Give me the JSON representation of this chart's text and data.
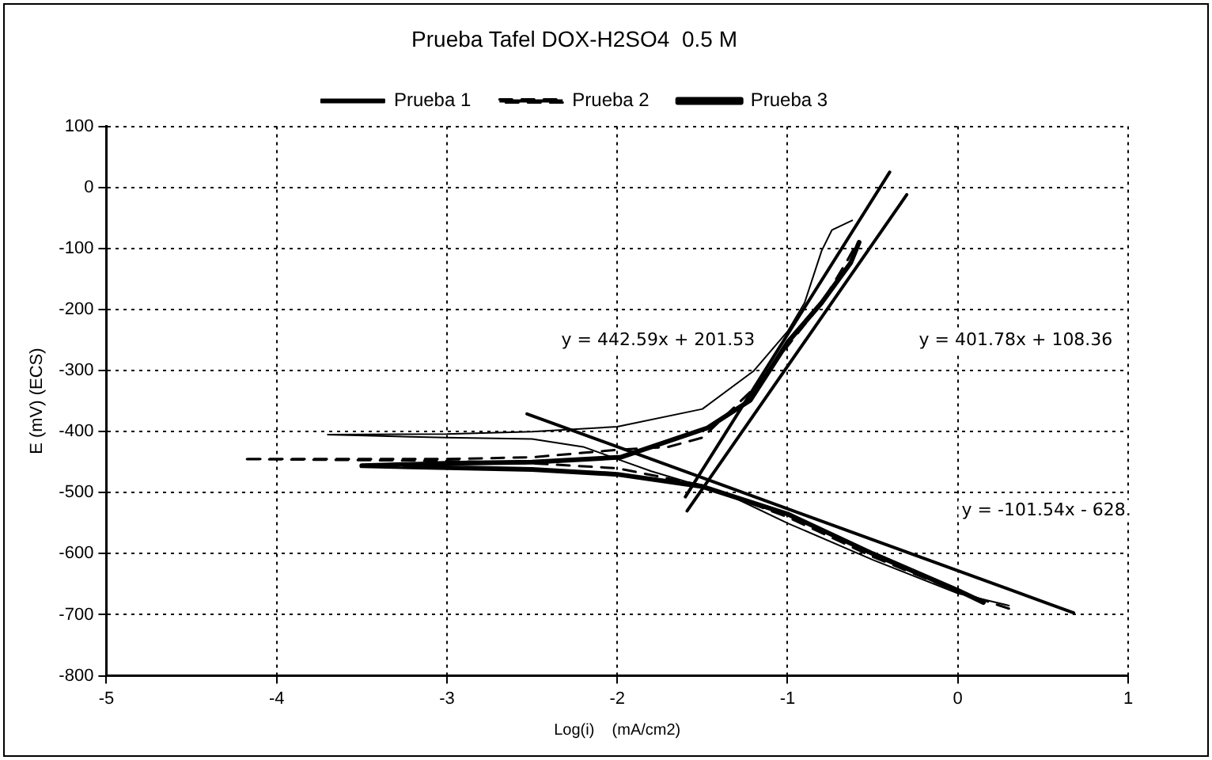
{
  "chart_data": {
    "type": "line",
    "title": "Prueba Tafel DOX-H2SO4  0.5 M",
    "xlabel": "Log(i)    (mA/cm2)",
    "ylabel": "E (mV) (ECS)",
    "xlim": [
      -5,
      1
    ],
    "xticks": [
      -5,
      -4,
      -3,
      -2,
      -1,
      0,
      1
    ],
    "ylim": [
      -800,
      100
    ],
    "yticks": [
      -800,
      -700,
      -600,
      -500,
      -400,
      -300,
      -200,
      -100,
      0,
      100
    ],
    "grid": true,
    "legend": "top",
    "marker": "none",
    "series": [
      {
        "name": "Prueba 1",
        "color": "#000000",
        "line_style": "solid",
        "x": [
          0.3,
          0,
          -0.5,
          -1,
          -1.3,
          -1.5,
          -1.8,
          -2,
          -2.2,
          -2.5,
          -3,
          -3.7,
          -3,
          -2.5,
          -2,
          -1.5,
          -1.2,
          -1,
          -0.9,
          -0.8,
          -0.74,
          -0.62
        ],
        "values": [
          -685,
          -665,
          -610,
          -550,
          -510,
          -490,
          -465,
          -445,
          -425,
          -412,
          -410,
          -405,
          -404,
          -400,
          -392,
          -363,
          -301,
          -236,
          -189,
          -104,
          -70,
          -54
        ]
      },
      {
        "name": "Prueba 2",
        "color": "#000000",
        "line_style": "dashed",
        "x": [
          0.3,
          0,
          -0.5,
          -1,
          -1.5,
          -2,
          -2.5,
          -3,
          -4.2,
          -3,
          -2.5,
          -2,
          -1.7,
          -1.5,
          -1.35,
          -1.2,
          -1,
          -0.8,
          -0.65,
          -0.6
        ],
        "values": [
          -690,
          -662,
          -605,
          -540,
          -488,
          -460,
          -452,
          -448,
          -445,
          -445,
          -442,
          -430,
          -425,
          -410,
          -370,
          -330,
          -260,
          -190,
          -120,
          -95
        ]
      },
      {
        "name": "Prueba 3",
        "color": "#000000",
        "line_style": "solid",
        "x": [
          0.15,
          0,
          -0.5,
          -1,
          -1.5,
          -2,
          -2.5,
          -3.5,
          -3,
          -2.5,
          -1.98,
          -1.47,
          -1.22,
          -1,
          -0.8,
          -0.63,
          -0.58
        ],
        "values": [
          -680,
          -660,
          -600,
          -535,
          -490,
          -470,
          -462,
          -456,
          -452,
          -450,
          -442,
          -394,
          -349,
          -254,
          -189,
          -124,
          -90
        ]
      },
      {
        "color": "#000000",
        "line_style": "solid",
        "x": [
          -1.6,
          -0.4
        ],
        "values": [
          -507,
          25
        ]
      },
      {
        "color": "#000000",
        "line_style": "solid",
        "x": [
          -1.59,
          -0.3
        ],
        "values": [
          -530,
          -12
        ]
      },
      {
        "color": "#000000",
        "line_style": "solid",
        "x": [
          -2.53,
          0.68
        ],
        "values": [
          -371,
          -697
        ]
      }
    ],
    "annotations": [
      "y = 442.59x + 201.53",
      "y = 401.78x + 108.36",
      "y = -101.54x - 628."
    ]
  }
}
